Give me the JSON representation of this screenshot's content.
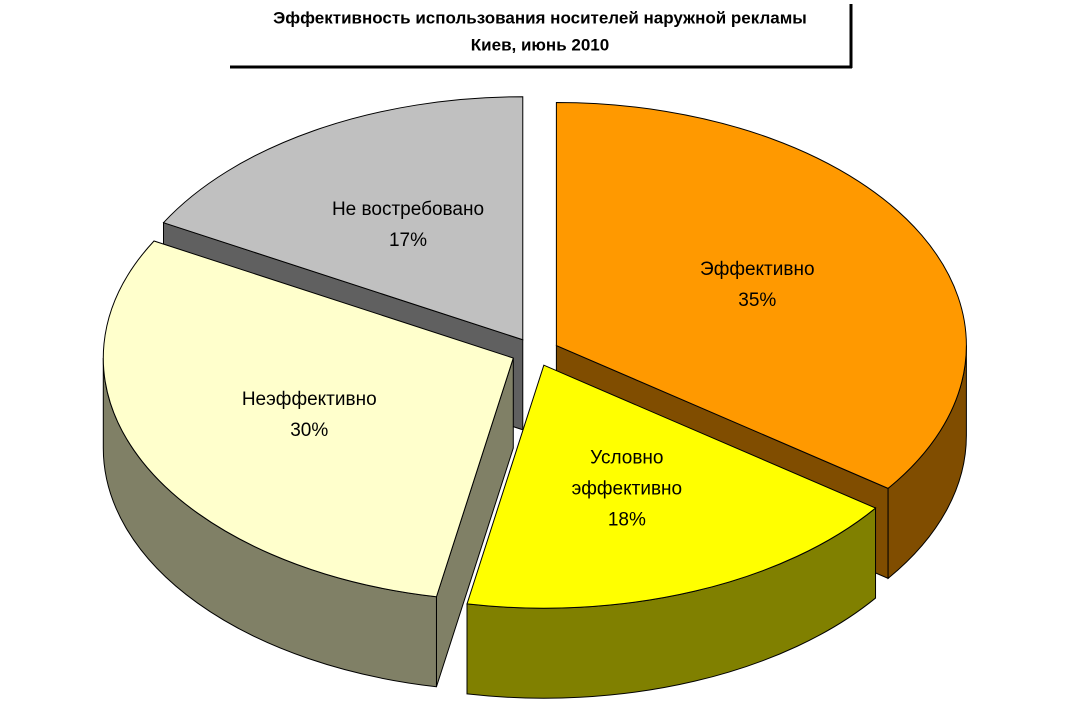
{
  "chart_data": {
    "type": "pie",
    "title": "Эффективность использования носителей наружной рекламы",
    "subtitle": "Киев, июнь 2010",
    "categories": [
      "Эффективно",
      "Условно эффективно",
      "Неэффективно",
      "Не востребовано"
    ],
    "values": [
      35,
      18,
      30,
      17
    ],
    "value_labels": [
      "35%",
      "18%",
      "30%",
      "17%"
    ],
    "colors": [
      "#ff9900",
      "#ffff00",
      "#ffffcc",
      "#c0c0c0"
    ]
  }
}
